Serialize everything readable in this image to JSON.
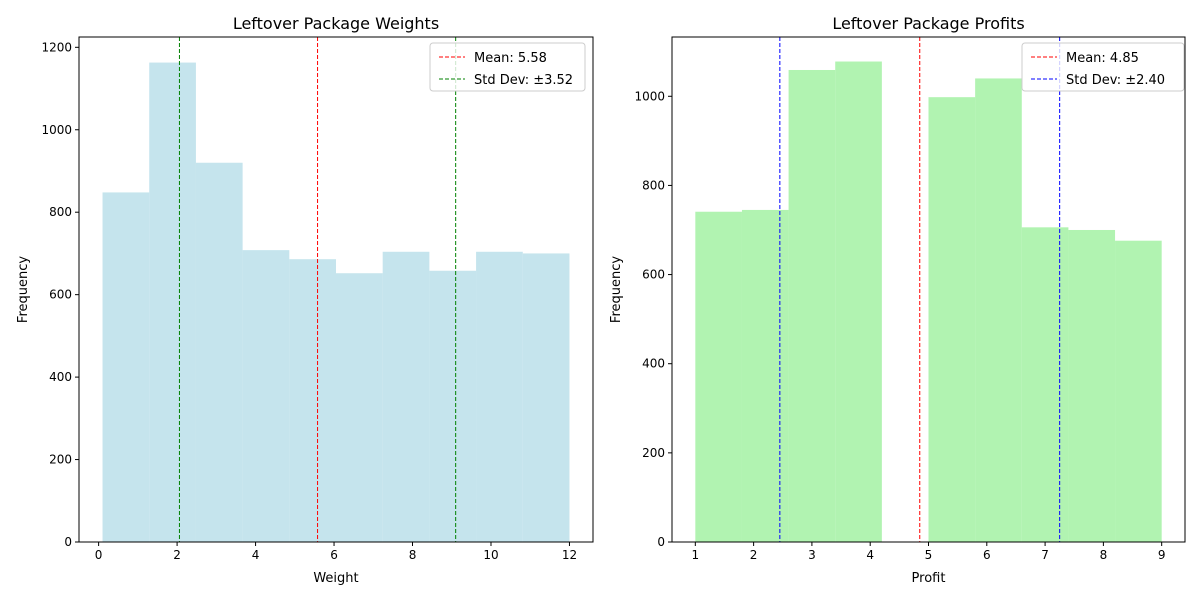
{
  "chart_data": [
    {
      "type": "bar",
      "title": "Leftover Package Weights",
      "xlabel": "Weight",
      "ylabel": "Frequency",
      "xlim": [
        -0.5,
        12.6
      ],
      "ylim": [
        0,
        1225
      ],
      "xticks": [
        0,
        2,
        4,
        6,
        8,
        10,
        12
      ],
      "yticks": [
        0,
        200,
        400,
        600,
        800,
        1000,
        1200
      ],
      "bins": [
        {
          "x0": 0.1,
          "x1": 1.29,
          "value": 848
        },
        {
          "x0": 1.29,
          "x1": 2.48,
          "value": 1163
        },
        {
          "x0": 2.48,
          "x1": 3.67,
          "value": 920
        },
        {
          "x0": 3.67,
          "x1": 4.86,
          "value": 708
        },
        {
          "x0": 4.86,
          "x1": 6.05,
          "value": 686
        },
        {
          "x0": 6.05,
          "x1": 7.24,
          "value": 652
        },
        {
          "x0": 7.24,
          "x1": 8.43,
          "value": 704
        },
        {
          "x0": 8.43,
          "x1": 9.62,
          "value": 658
        },
        {
          "x0": 9.62,
          "x1": 10.81,
          "value": 704
        },
        {
          "x0": 10.81,
          "x1": 12.0,
          "value": 700
        }
      ],
      "bar_color": "#add8e6",
      "bar_opacity": 0.7,
      "vlines": [
        {
          "x": 5.58,
          "color": "#ff0000"
        },
        {
          "x": 2.06,
          "color": "#008000"
        },
        {
          "x": 9.1,
          "color": "#008000"
        }
      ],
      "legend": [
        {
          "label": "Mean: 5.58",
          "color": "#ff0000"
        },
        {
          "label": "Std Dev: ±3.52",
          "color": "#008000"
        }
      ],
      "legend_position": "top-right",
      "grid": false
    },
    {
      "type": "bar",
      "title": "Leftover Package Profits",
      "xlabel": "Profit",
      "ylabel": "Frequency",
      "xlim": [
        0.6,
        9.4
      ],
      "ylim": [
        0,
        1133
      ],
      "xticks": [
        1,
        2,
        3,
        4,
        5,
        6,
        7,
        8,
        9
      ],
      "yticks": [
        0,
        200,
        400,
        600,
        800,
        1000
      ],
      "bins": [
        {
          "x0": 1.0,
          "x1": 1.8,
          "value": 741
        },
        {
          "x0": 1.8,
          "x1": 2.6,
          "value": 745
        },
        {
          "x0": 2.6,
          "x1": 3.4,
          "value": 1059
        },
        {
          "x0": 3.4,
          "x1": 4.2,
          "value": 1078
        },
        {
          "x0": 4.2,
          "x1": 5.0,
          "value": 0
        },
        {
          "x0": 5.0,
          "x1": 5.8,
          "value": 998
        },
        {
          "x0": 5.8,
          "x1": 6.6,
          "value": 1040
        },
        {
          "x0": 6.6,
          "x1": 7.4,
          "value": 706
        },
        {
          "x0": 7.4,
          "x1": 8.2,
          "value": 700
        },
        {
          "x0": 8.2,
          "x1": 9.0,
          "value": 676
        }
      ],
      "bar_color": "#90ee90",
      "bar_opacity": 0.7,
      "vlines": [
        {
          "x": 4.85,
          "color": "#ff0000"
        },
        {
          "x": 2.45,
          "color": "#0000ff"
        },
        {
          "x": 7.25,
          "color": "#0000ff"
        }
      ],
      "legend": [
        {
          "label": "Mean: 4.85",
          "color": "#ff0000"
        },
        {
          "label": "Std Dev: ±2.40",
          "color": "#0000ff"
        }
      ],
      "legend_position": "top-right",
      "grid": false
    }
  ]
}
